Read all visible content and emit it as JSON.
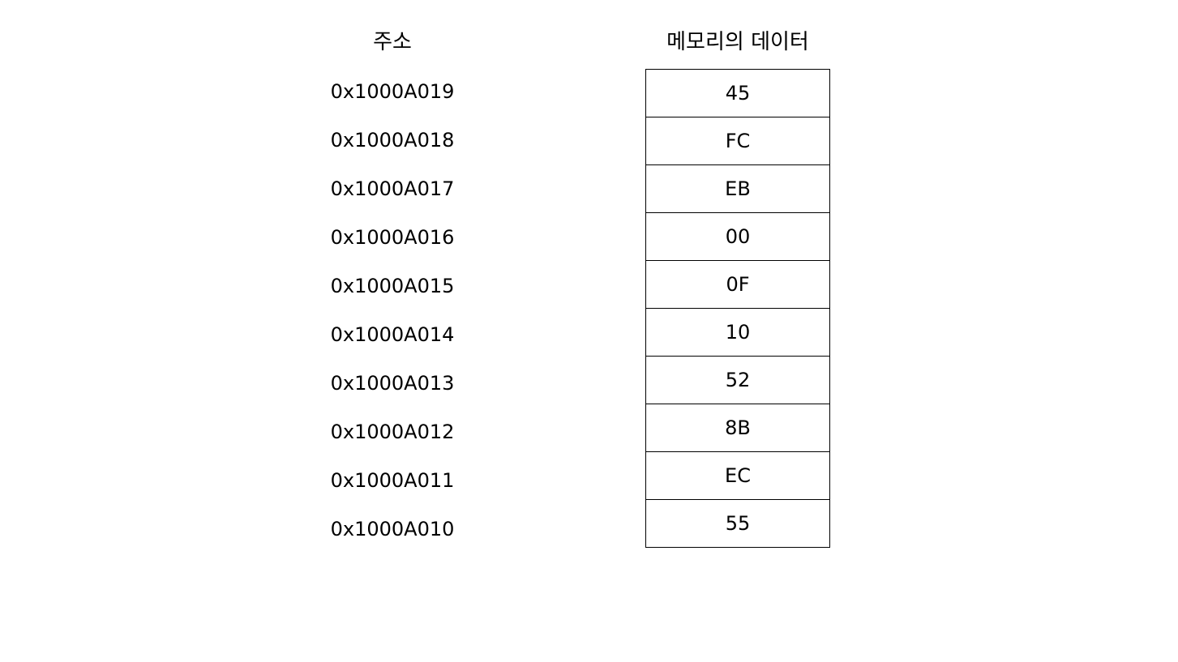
{
  "headers": {
    "address": "주소",
    "data": "메모리의 데이터"
  },
  "rows": [
    {
      "address": "0x1000A019",
      "value": "45"
    },
    {
      "address": "0x1000A018",
      "value": "FC"
    },
    {
      "address": "0x1000A017",
      "value": "EB"
    },
    {
      "address": "0x1000A016",
      "value": "00"
    },
    {
      "address": "0x1000A015",
      "value": "0F"
    },
    {
      "address": "0x1000A014",
      "value": "10"
    },
    {
      "address": "0x1000A013",
      "value": "52"
    },
    {
      "address": "0x1000A012",
      "value": "8B"
    },
    {
      "address": "0x1000A011",
      "value": "EC"
    },
    {
      "address": "0x1000A010",
      "value": "55"
    }
  ]
}
